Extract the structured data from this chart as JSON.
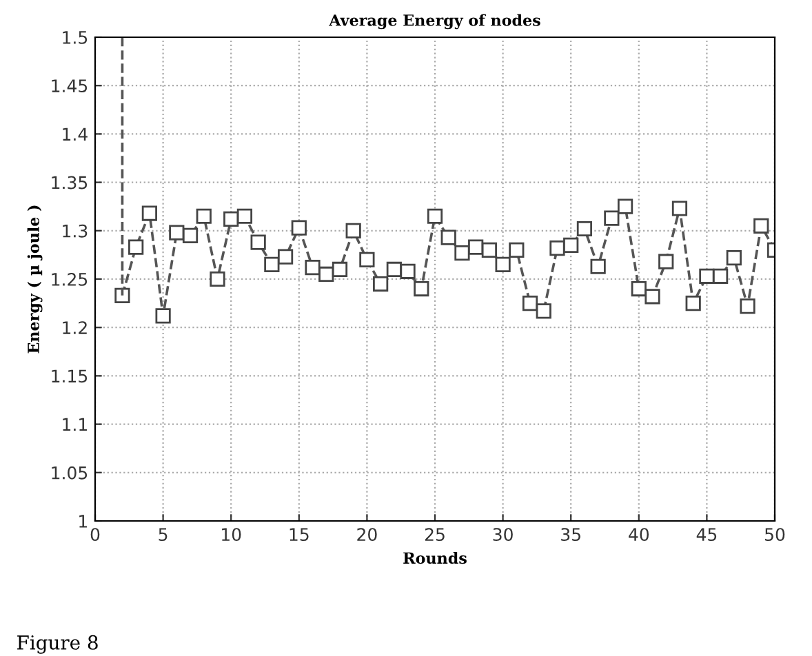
{
  "chart_data": {
    "type": "line",
    "title": "Average Energy of nodes",
    "xlabel": "Rounds",
    "ylabel": "Energy ( µ joule )",
    "series": [
      {
        "color": "#555555",
        "marker": "square",
        "line_style": "dashed",
        "x": [
          2,
          3,
          4,
          5,
          6,
          7,
          8,
          9,
          10,
          11,
          12,
          13,
          14,
          15,
          16,
          17,
          18,
          19,
          20,
          21,
          22,
          23,
          24,
          25,
          26,
          27,
          28,
          29,
          30,
          31,
          32,
          33,
          34,
          35,
          36,
          37,
          38,
          39,
          40,
          41,
          42,
          43,
          44,
          45,
          46,
          47,
          48,
          49,
          50
        ],
        "values": [
          1.233,
          1.283,
          1.318,
          1.212,
          1.298,
          1.295,
          1.315,
          1.25,
          1.312,
          1.315,
          1.288,
          1.265,
          1.273,
          1.303,
          1.262,
          1.255,
          1.26,
          1.3,
          1.27,
          1.245,
          1.26,
          1.258,
          1.24,
          1.315,
          1.293,
          1.277,
          1.283,
          1.28,
          1.265,
          1.28,
          1.225,
          1.217,
          1.282,
          1.285,
          1.302,
          1.263,
          1.313,
          1.325,
          1.24,
          1.232,
          1.268,
          1.323,
          1.225,
          1.253,
          1.253,
          1.272,
          1.222,
          1.305,
          1.28
        ]
      },
      {
        "color": "#555555",
        "marker": "none",
        "line_style": "dashed",
        "x": [
          2,
          2
        ],
        "values": [
          1.5,
          1.233
        ]
      }
    ],
    "xlim": [
      0,
      50
    ],
    "xticks": [
      0,
      5,
      10,
      15,
      20,
      25,
      30,
      35,
      40,
      45,
      50
    ],
    "ylim": [
      1,
      1.5
    ],
    "yticks": [
      1,
      1.05,
      1.1,
      1.15,
      1.2,
      1.25,
      1.3,
      1.35,
      1.4,
      1.45,
      1.5
    ],
    "grid": true,
    "annotations": [
      "Figure 8"
    ]
  }
}
